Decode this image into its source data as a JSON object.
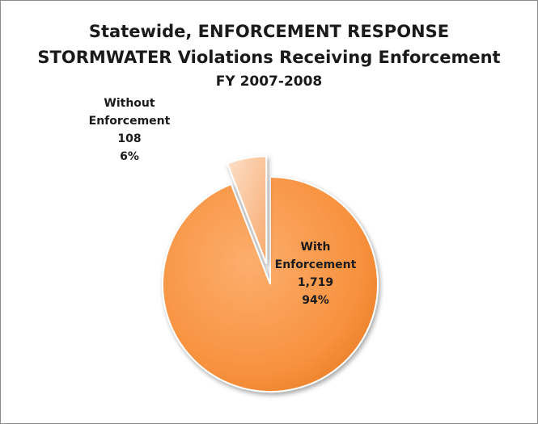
{
  "chart_data": {
    "type": "pie",
    "title": "Statewide, ENFORCEMENT RESPONSE",
    "subtitle": "STORMWATER Violations Receiving Enforcement",
    "period": "FY 2007-2008",
    "slices": [
      {
        "label_lines": [
          "With",
          "Enforcement"
        ],
        "value": 1719,
        "value_text": "1,719",
        "percent_text": "94%",
        "color": "#f79646",
        "exploded": false
      },
      {
        "label_lines": [
          "Without",
          "Enforcement"
        ],
        "value": 108,
        "value_text": "108",
        "percent_text": "6%",
        "color": "#fbc7a2",
        "exploded": true
      }
    ],
    "legend": "none"
  }
}
